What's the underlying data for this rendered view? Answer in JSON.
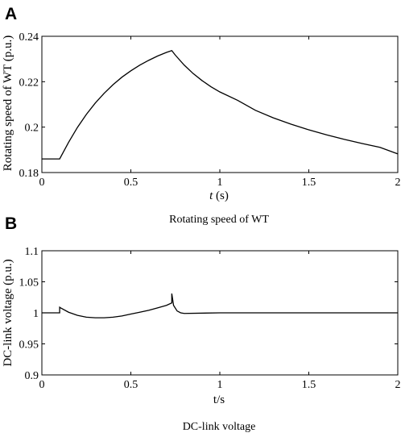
{
  "chart_data": [
    {
      "panel_label": "A",
      "type": "line",
      "title": "",
      "caption": "Rotating speed of WT",
      "xlabel": {
        "italic": "t",
        "rest": " (s)"
      },
      "ylabel": "Rotating speed of WT (p.u.)",
      "xlim": [
        0,
        2
      ],
      "ylim": [
        0.18,
        0.24
      ],
      "xticks": [
        0,
        0.5,
        1,
        1.5,
        2
      ],
      "xtick_labels": [
        "0",
        "0.5",
        "1",
        "1.5",
        "2"
      ],
      "yticks": [
        0.18,
        0.2,
        0.22,
        0.24
      ],
      "ytick_labels": [
        "0.18",
        "0.2",
        "0.22",
        "0.24"
      ],
      "grid": false,
      "series": [
        {
          "x": [
            0,
            0.05,
            0.1,
            0.15,
            0.2,
            0.25,
            0.3,
            0.35,
            0.4,
            0.45,
            0.5,
            0.55,
            0.6,
            0.65,
            0.7,
            0.73,
            0.75,
            0.8,
            0.85,
            0.9,
            0.95,
            1.0,
            1.1,
            1.2,
            1.3,
            1.4,
            1.5,
            1.6,
            1.7,
            1.8,
            1.9,
            2.0
          ],
          "y": [
            0.186,
            0.186,
            0.186,
            0.1933,
            0.1999,
            0.2056,
            0.2106,
            0.2149,
            0.2187,
            0.222,
            0.2248,
            0.2273,
            0.2294,
            0.2313,
            0.2329,
            0.2337,
            0.2317,
            0.2273,
            0.2236,
            0.2205,
            0.2178,
            0.2155,
            0.2118,
            0.2074,
            0.2041,
            0.2013,
            0.1988,
            0.1966,
            0.1946,
            0.1928,
            0.1911,
            0.1882
          ]
        }
      ]
    },
    {
      "panel_label": "B",
      "type": "line",
      "title": "",
      "caption": "DC-link voltage",
      "xlabel": {
        "italic": "",
        "rest": "t/s"
      },
      "ylabel": "DC-link voltage (p.u.)",
      "xlim": [
        0,
        2
      ],
      "ylim": [
        0.9,
        1.1
      ],
      "xticks": [
        0,
        0.5,
        1,
        1.5,
        2
      ],
      "xtick_labels": [
        "0",
        "0.5",
        "1",
        "1.5",
        "2"
      ],
      "yticks": [
        0.9,
        0.95,
        1,
        1.05,
        1.1
      ],
      "ytick_labels": [
        "0.9",
        "0.95",
        "1",
        "1.05",
        "1.1"
      ],
      "grid": false,
      "series": [
        {
          "x": [
            0,
            0.1,
            0.1,
            0.105,
            0.15,
            0.2,
            0.25,
            0.3,
            0.35,
            0.4,
            0.45,
            0.5,
            0.55,
            0.6,
            0.65,
            0.7,
            0.73,
            0.73,
            0.74,
            0.76,
            0.78,
            0.8,
            1.0,
            1.5,
            2.0
          ],
          "y": [
            1.0,
            1.0,
            1.009,
            1.008,
            1.001,
            0.996,
            0.993,
            0.992,
            0.992,
            0.993,
            0.995,
            0.998,
            1.001,
            1.004,
            1.008,
            1.012,
            1.016,
            1.031,
            1.012,
            1.003,
            1.0,
            0.999,
            1.0,
            1.0,
            1.0
          ]
        }
      ]
    }
  ]
}
